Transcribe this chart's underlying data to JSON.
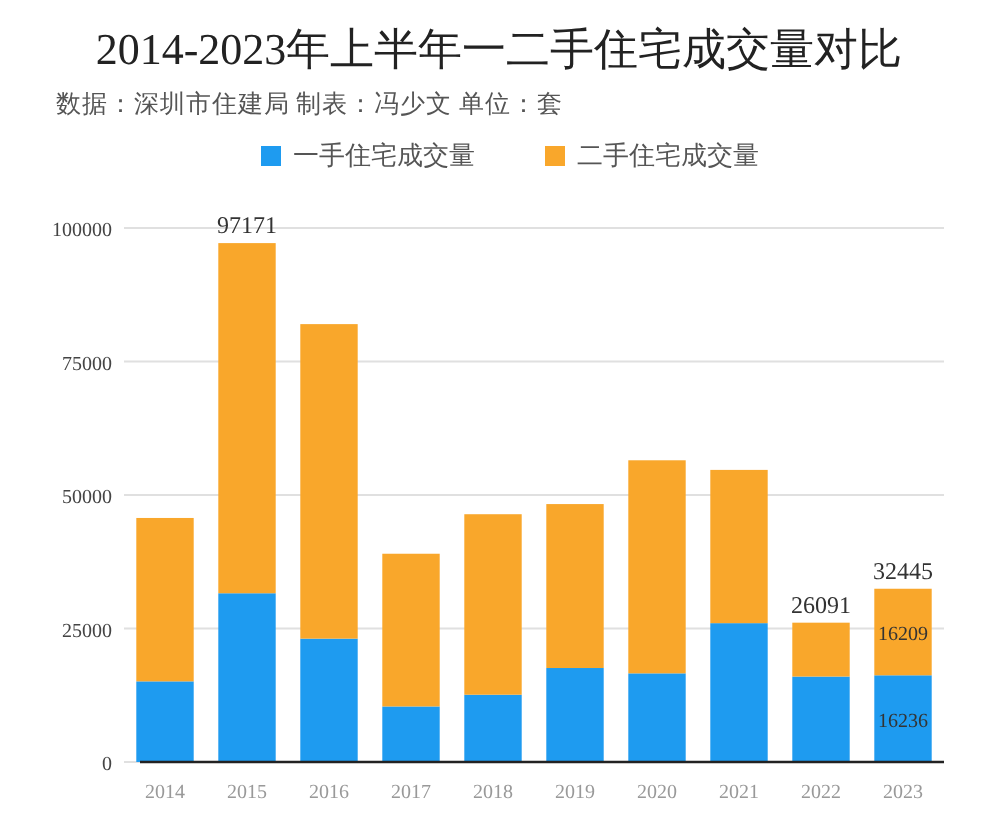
{
  "chart_data": {
    "type": "bar",
    "stacked": true,
    "title": "2014-2023年上半年一二手住宅成交量对比",
    "subtitle": "数据：深圳市住建局 制表：冯少文     单位：套",
    "categories": [
      "2014",
      "2015",
      "2016",
      "2017",
      "2018",
      "2019",
      "2020",
      "2021",
      "2022",
      "2023"
    ],
    "series": [
      {
        "name": "一手住宅成交量",
        "color": "#1e9bf0",
        "values": [
          15100,
          31600,
          23100,
          10400,
          12600,
          17600,
          16600,
          26000,
          16000,
          16236
        ],
        "value_labels": [
          null,
          null,
          null,
          null,
          null,
          null,
          null,
          null,
          null,
          "16236"
        ]
      },
      {
        "name": "二手住宅成交量",
        "color": "#f9a72b",
        "values": [
          30600,
          65571,
          58900,
          28600,
          33800,
          30700,
          39900,
          28700,
          10091,
          16209
        ],
        "value_labels": [
          null,
          null,
          null,
          null,
          null,
          null,
          null,
          null,
          null,
          "16209"
        ]
      }
    ],
    "totals": [
      null,
      "97171",
      null,
      null,
      null,
      null,
      null,
      null,
      "26091",
      "32445"
    ],
    "ylim": [
      0,
      100000
    ],
    "yticks": [
      0,
      25000,
      50000,
      75000,
      100000
    ],
    "grid": "y",
    "legend": "top"
  }
}
